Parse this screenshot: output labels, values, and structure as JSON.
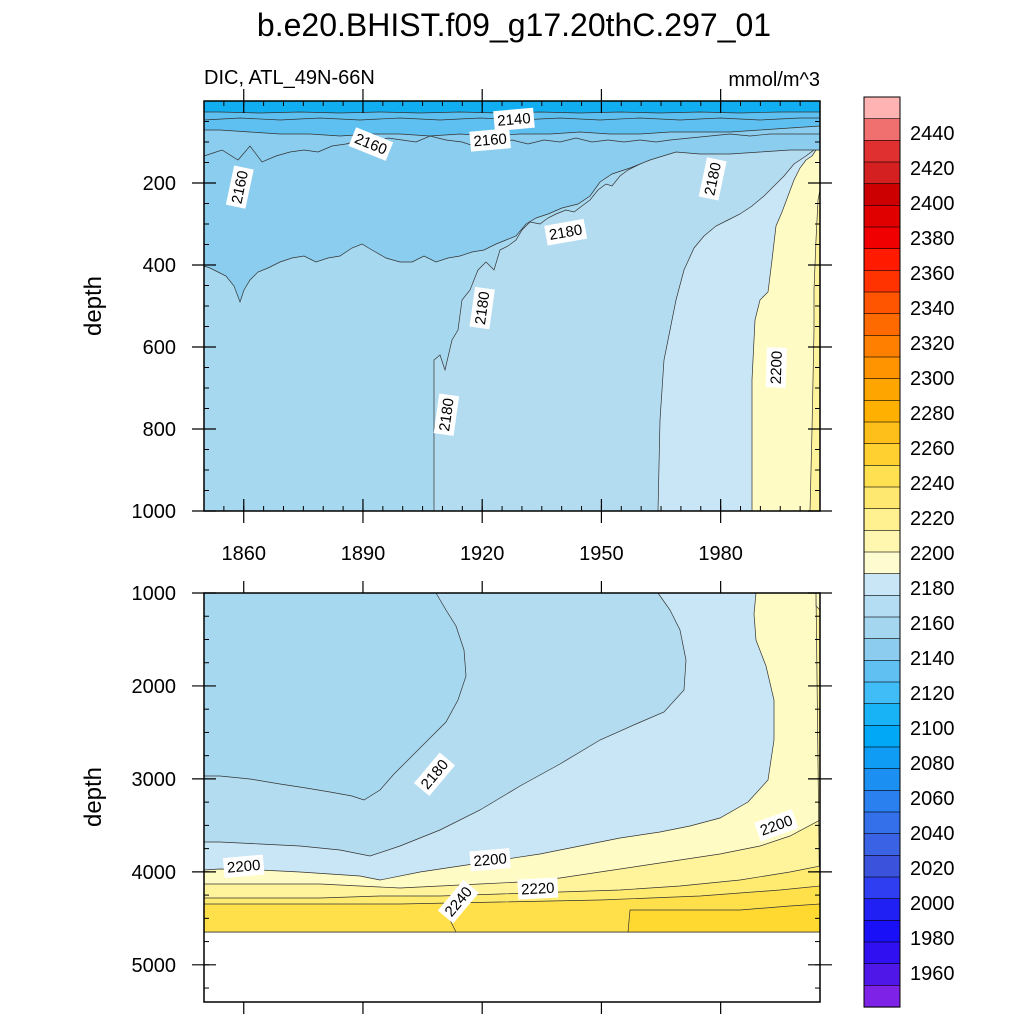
{
  "chart_data": {
    "type": "contour",
    "title": "b.e20.BHIST.f09_g17.20thC.297_01",
    "subtitle_left": "DIC, ATL_49N-66N",
    "subtitle_right": "mmol/m^3",
    "x_axis": {
      "range": [
        1850,
        2005
      ],
      "ticks": [
        1860,
        1890,
        1920,
        1950,
        1980
      ],
      "tick_labels": [
        "1860",
        "1890",
        "1920",
        "1950",
        "1980"
      ]
    },
    "panels": [
      {
        "ylabel": "depth",
        "ylim": [
          0,
          1000
        ],
        "yticks": [
          200,
          400,
          600,
          800,
          1000
        ],
        "ytick_labels": [
          "200",
          "400",
          "600",
          "800",
          "1000"
        ],
        "contour_labels": [
          {
            "text": "2140",
            "x": 1928,
            "y": 45
          },
          {
            "text": "2160",
            "x": 1922,
            "y": 95
          },
          {
            "text": "2160",
            "x": 1892,
            "y": 105
          },
          {
            "text": "2160",
            "x": 1859,
            "y": 210
          },
          {
            "text": "2180",
            "x": 1978,
            "y": 190
          },
          {
            "text": "2180",
            "x": 1941,
            "y": 320
          },
          {
            "text": "2180",
            "x": 1920,
            "y": 505
          },
          {
            "text": "2180",
            "x": 1911,
            "y": 765
          },
          {
            "text": "2200",
            "x": 1994,
            "y": 650
          }
        ]
      },
      {
        "ylabel": "depth",
        "ylim": [
          1000,
          5400
        ],
        "yticks": [
          1000,
          2000,
          3000,
          4000,
          5000
        ],
        "ytick_labels": [
          "1000",
          "2000",
          "3000",
          "4000",
          "5000"
        ],
        "data_bottom_depth": 4600,
        "contour_labels": [
          {
            "text": "2180",
            "x": 1908,
            "y": 2950
          },
          {
            "text": "2200",
            "x": 1860,
            "y": 3940
          },
          {
            "text": "2200",
            "x": 1922,
            "y": 3870
          },
          {
            "text": "2200",
            "x": 1994,
            "y": 3500
          },
          {
            "text": "2220",
            "x": 1934,
            "y": 4180
          },
          {
            "text": "2240",
            "x": 1914,
            "y": 4320
          }
        ]
      }
    ],
    "colorbar": {
      "labels": [
        "2440",
        "2420",
        "2400",
        "2380",
        "2360",
        "2340",
        "2320",
        "2300",
        "2280",
        "2260",
        "2240",
        "2220",
        "2200",
        "2180",
        "2160",
        "2140",
        "2120",
        "2100",
        "2080",
        "2060",
        "2040",
        "2020",
        "2000",
        "1980",
        "1960"
      ],
      "colors": [
        "#ffb3b3",
        "#f07070",
        "#e03030",
        "#d42020",
        "#cc0000",
        "#e00000",
        "#f00000",
        "#ff1a00",
        "#ff3300",
        "#ff5500",
        "#ff6a00",
        "#ff7f00",
        "#ff9400",
        "#ffa500",
        "#ffb000",
        "#ffbf1a",
        "#ffd030",
        "#ffe050",
        "#ffe870",
        "#fff090",
        "#fff6b0",
        "#fffbd0",
        "#c8e6f6",
        "#b4dcf2",
        "#a4d6f0",
        "#8ccdef",
        "#60c0f2",
        "#40bdf6",
        "#18b2f6",
        "#00a8f5",
        "#0e9cf4",
        "#1c90f2",
        "#2a80ef",
        "#3470ea",
        "#3a62e4",
        "#3a52dc",
        "#2f3ef0",
        "#2020f4",
        "#1a10f8",
        "#3010f0",
        "#5018e8",
        "#7e22e8"
      ],
      "ordering": "top_to_bottom"
    },
    "fill_palette": {
      "c2120": "#12aef2",
      "c2140": "#5ec0f0",
      "c2160": "#8bcdee",
      "c2170": "#a6d8f0",
      "c2180": "#b4dcf0",
      "c2190": "#c8e6f6",
      "c2200": "#fffbc4",
      "c2210": "#fff39c",
      "c2220": "#ffeb70",
      "c2230": "#ffe04a",
      "c2240": "#ffd830"
    }
  }
}
